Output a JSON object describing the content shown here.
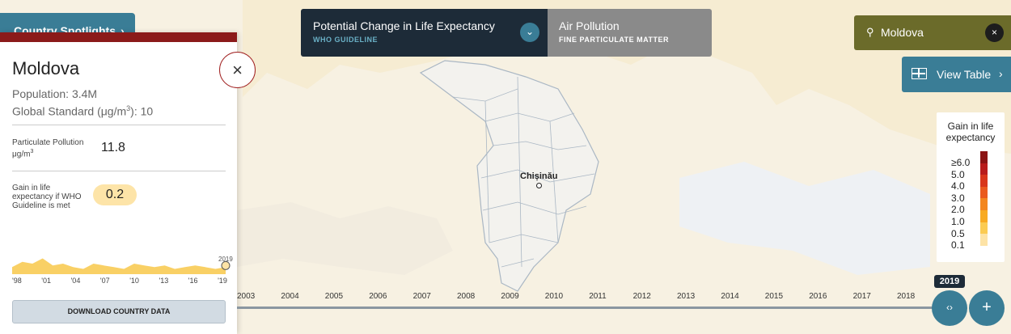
{
  "nav": {
    "spotlights_label": "Country Spotlights",
    "spotlights_chevron": "›"
  },
  "panel": {
    "country": "Moldova",
    "population": "Population: 3.4M",
    "global_standard_prefix": "Global Standard (μg/m",
    "global_standard_sup": "3",
    "global_standard_suffix": "): 10",
    "close_icon": "×",
    "pm_label": "Particulate Pollution μg/m",
    "pm_label_sup": "3",
    "pm_value": "11.8",
    "gain_label": "Gain in life expectancy if WHO Guideline is met",
    "gain_value": "0.2",
    "sparkline": {
      "tick_labels": [
        "'98",
        "'01",
        "'04",
        "'07",
        "'10",
        "'13",
        "'16",
        "'19"
      ],
      "end_year": "2019",
      "values": [
        0.2,
        0.35,
        0.3,
        0.45,
        0.25,
        0.3,
        0.2,
        0.15,
        0.3,
        0.25,
        0.2,
        0.15,
        0.3,
        0.25,
        0.2,
        0.25,
        0.15,
        0.2,
        0.25,
        0.2,
        0.15,
        0.2
      ]
    },
    "download_label": "DOWNLOAD COUNTRY DATA"
  },
  "metric_toggle": {
    "primary_title": "Potential Change in Life Expectancy",
    "primary_sub": "WHO GUIDELINE",
    "dropdown_icon": "⌄",
    "secondary_title": "Air Pollution",
    "secondary_sub": "FINE PARTICULATE MATTER"
  },
  "search": {
    "icon": "⚲",
    "value": "Moldova",
    "clear_icon": "×"
  },
  "view_table": {
    "label": "View Table",
    "chevron": "›"
  },
  "legend": {
    "title": "Gain in life expectancy",
    "labels": [
      "≥6.0",
      "5.0",
      "4.0",
      "3.0",
      "2.0",
      "1.0",
      "0.5",
      "0.1"
    ],
    "colors": [
      "#8b1414",
      "#b81c1c",
      "#d8361b",
      "#ea5a1e",
      "#f3861f",
      "#f8aa22",
      "#fbcb52",
      "#fde3a6"
    ]
  },
  "map": {
    "city": "Chișinău"
  },
  "timeline": {
    "years": [
      "2003",
      "2004",
      "2005",
      "2006",
      "2007",
      "2008",
      "2009",
      "2010",
      "2011",
      "2012",
      "2013",
      "2014",
      "2015",
      "2016",
      "2017",
      "2018"
    ],
    "current_year": "2019",
    "play_icon": "‹›",
    "plus_icon": "+"
  }
}
